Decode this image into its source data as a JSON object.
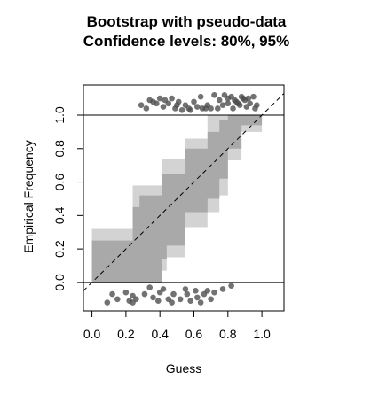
{
  "chart_data": {
    "type": "scatter",
    "title": "Bootstrap with pseudo-data",
    "subtitle": "Confidence levels: 80%, 95%",
    "xlabel": "Guess",
    "ylabel": "Empirical Frequency",
    "xlim": [
      -0.05,
      1.13
    ],
    "ylim": [
      -0.17,
      1.18
    ],
    "x_ticks": [
      "0.0",
      "0.2",
      "0.4",
      "0.6",
      "0.8",
      "1.0"
    ],
    "y_ticks": [
      "0.0",
      "0.2",
      "0.4",
      "0.6",
      "0.8",
      "1.0"
    ],
    "reference_lines": [
      0,
      1
    ],
    "diagonal": "dashed",
    "colors": {
      "band_95": "#d3d3d3",
      "band_80": "#a9a9a9",
      "points": "#4a4a4a"
    },
    "band_95": {
      "x": [
        0.0,
        0.24,
        0.24,
        0.28,
        0.28,
        0.41,
        0.41,
        0.44,
        0.44,
        0.55,
        0.55,
        0.68,
        0.68,
        0.75,
        0.75,
        0.8,
        0.8,
        0.88,
        0.88,
        1.0
      ],
      "lower": [
        0.0,
        0.0,
        0.0,
        0.0,
        0.0,
        0.0,
        0.07,
        0.07,
        0.15,
        0.15,
        0.33,
        0.33,
        0.42,
        0.42,
        0.52,
        0.52,
        0.73,
        0.73,
        0.9,
        0.9
      ],
      "upper": [
        0.32,
        0.32,
        0.58,
        0.58,
        0.58,
        0.58,
        0.74,
        0.74,
        0.74,
        0.74,
        0.86,
        0.86,
        1.0,
        1.0,
        1.0,
        1.0,
        1.0,
        1.0,
        1.0,
        1.0
      ]
    },
    "band_80": {
      "x": [
        0.0,
        0.24,
        0.24,
        0.28,
        0.28,
        0.41,
        0.41,
        0.44,
        0.44,
        0.55,
        0.55,
        0.68,
        0.68,
        0.75,
        0.75,
        0.8,
        0.8,
        0.88,
        0.88,
        1.0
      ],
      "lower": [
        0.0,
        0.0,
        0.0,
        0.0,
        0.0,
        0.0,
        0.14,
        0.14,
        0.22,
        0.22,
        0.42,
        0.42,
        0.5,
        0.5,
        0.62,
        0.62,
        0.8,
        0.8,
        0.94,
        0.94
      ],
      "upper": [
        0.25,
        0.25,
        0.45,
        0.45,
        0.52,
        0.52,
        0.65,
        0.65,
        0.65,
        0.65,
        0.8,
        0.8,
        0.9,
        0.9,
        0.97,
        0.97,
        1.0,
        1.0,
        1.0,
        1.0
      ]
    },
    "points_top": {
      "x": [
        0.29,
        0.32,
        0.34,
        0.36,
        0.38,
        0.4,
        0.42,
        0.43,
        0.45,
        0.47,
        0.49,
        0.5,
        0.51,
        0.53,
        0.55,
        0.57,
        0.58,
        0.6,
        0.62,
        0.64,
        0.65,
        0.67,
        0.68,
        0.7,
        0.72,
        0.74,
        0.75,
        0.77,
        0.78,
        0.8,
        0.8,
        0.82,
        0.83,
        0.84,
        0.85,
        0.86,
        0.87,
        0.88,
        0.89,
        0.9,
        0.91,
        0.92,
        0.93,
        0.95,
        0.96,
        0.97
      ],
      "y": [
        1.06,
        1.04,
        1.09,
        1.08,
        1.07,
        1.1,
        1.05,
        1.09,
        1.07,
        1.1,
        1.04,
        1.06,
        1.08,
        1.03,
        1.06,
        1.04,
        1.03,
        1.08,
        1.05,
        1.11,
        1.04,
        1.04,
        1.06,
        1.04,
        1.12,
        1.04,
        1.09,
        1.06,
        1.12,
        1.07,
        1.1,
        1.11,
        1.04,
        1.09,
        1.08,
        1.07,
        1.06,
        1.11,
        1.1,
        1.09,
        1.05,
        1.1,
        1.07,
        1.11,
        1.04,
        1.06
      ]
    },
    "points_bottom": {
      "x": [
        0.09,
        0.12,
        0.15,
        0.2,
        0.22,
        0.24,
        0.24,
        0.26,
        0.31,
        0.34,
        0.36,
        0.39,
        0.4,
        0.42,
        0.45,
        0.47,
        0.48,
        0.52,
        0.55,
        0.56,
        0.58,
        0.61,
        0.62,
        0.64,
        0.66,
        0.68,
        0.7,
        0.72,
        0.77,
        0.82
      ],
      "y": [
        -0.12,
        -0.07,
        -0.1,
        -0.06,
        -0.11,
        -0.12,
        -0.08,
        -0.1,
        -0.07,
        -0.03,
        -0.09,
        -0.11,
        -0.06,
        -0.04,
        -0.1,
        -0.12,
        -0.07,
        -0.1,
        -0.04,
        -0.07,
        -0.11,
        -0.05,
        -0.09,
        -0.12,
        -0.07,
        -0.05,
        -0.1,
        -0.06,
        -0.04,
        -0.02
      ]
    }
  }
}
